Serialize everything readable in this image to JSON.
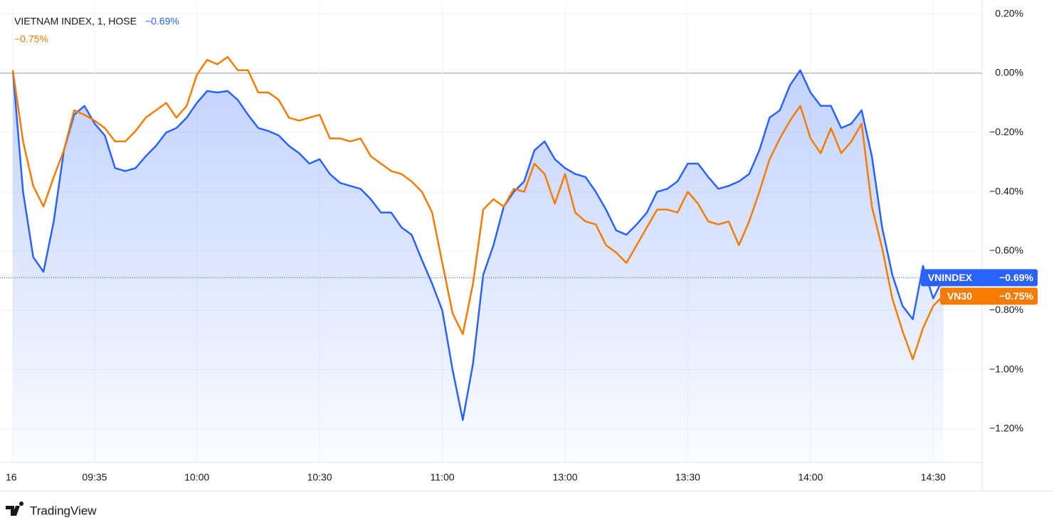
{
  "chart_data": {
    "type": "line",
    "title": "VIETNAM INDEX, 1, HOSE",
    "brand": "TradingView",
    "categories": [
      "16",
      null,
      null,
      null,
      null,
      null,
      null,
      null,
      "09:35",
      null,
      null,
      null,
      null,
      null,
      null,
      null,
      null,
      null,
      "10:00",
      null,
      null,
      null,
      null,
      null,
      null,
      null,
      null,
      null,
      null,
      null,
      "10:30",
      null,
      null,
      null,
      null,
      null,
      null,
      null,
      null,
      null,
      null,
      null,
      "11:00",
      null,
      null,
      null,
      null,
      null,
      null,
      null,
      null,
      null,
      null,
      null,
      "13:00",
      null,
      null,
      null,
      null,
      null,
      null,
      null,
      null,
      null,
      null,
      null,
      "13:30",
      null,
      null,
      null,
      null,
      null,
      null,
      null,
      null,
      null,
      null,
      null,
      "14:00",
      null,
      null,
      null,
      null,
      null,
      null,
      null,
      null,
      null,
      null,
      null,
      "14:30",
      null
    ],
    "series": [
      {
        "name": "VNINDEX",
        "color": "#2962ff",
        "last_label": "−0.69%",
        "area": true,
        "values": [
          0.01,
          -0.4,
          -0.62,
          -0.67,
          -0.5,
          -0.26,
          -0.14,
          -0.11,
          -0.17,
          -0.21,
          -0.32,
          -0.33,
          -0.32,
          -0.28,
          -0.245,
          -0.2,
          -0.185,
          -0.15,
          -0.1,
          -0.06,
          -0.065,
          -0.06,
          -0.09,
          -0.14,
          -0.185,
          -0.195,
          -0.21,
          -0.245,
          -0.27,
          -0.305,
          -0.29,
          -0.34,
          -0.37,
          -0.38,
          -0.39,
          -0.425,
          -0.47,
          -0.47,
          -0.52,
          -0.545,
          -0.63,
          -0.71,
          -0.8,
          -1.0,
          -1.17,
          -0.98,
          -0.68,
          -0.58,
          -0.45,
          -0.4,
          -0.365,
          -0.26,
          -0.23,
          -0.29,
          -0.32,
          -0.34,
          -0.35,
          -0.4,
          -0.46,
          -0.53,
          -0.545,
          -0.51,
          -0.47,
          -0.4,
          -0.39,
          -0.365,
          -0.305,
          -0.305,
          -0.35,
          -0.39,
          -0.38,
          -0.365,
          -0.34,
          -0.26,
          -0.15,
          -0.125,
          -0.04,
          0.01,
          -0.065,
          -0.11,
          -0.11,
          -0.185,
          -0.17,
          -0.125,
          -0.28,
          -0.52,
          -0.68,
          -0.785,
          -0.83,
          -0.65,
          -0.76,
          -0.69
        ]
      },
      {
        "name": "VN30",
        "color": "#f57c00",
        "last_label": "−0.75%",
        "area": false,
        "values": [
          0.01,
          -0.23,
          -0.38,
          -0.45,
          -0.35,
          -0.26,
          -0.125,
          -0.14,
          -0.16,
          -0.185,
          -0.23,
          -0.23,
          -0.195,
          -0.15,
          -0.125,
          -0.1,
          -0.15,
          -0.11,
          -0.005,
          0.045,
          0.03,
          0.055,
          0.01,
          0.01,
          -0.065,
          -0.065,
          -0.09,
          -0.15,
          -0.16,
          -0.15,
          -0.14,
          -0.22,
          -0.22,
          -0.23,
          -0.22,
          -0.28,
          -0.305,
          -0.33,
          -0.34,
          -0.365,
          -0.4,
          -0.47,
          -0.64,
          -0.81,
          -0.88,
          -0.71,
          -0.46,
          -0.425,
          -0.45,
          -0.39,
          -0.4,
          -0.305,
          -0.34,
          -0.44,
          -0.34,
          -0.47,
          -0.5,
          -0.51,
          -0.58,
          -0.605,
          -0.64,
          -0.58,
          -0.52,
          -0.46,
          -0.46,
          -0.47,
          -0.4,
          -0.44,
          -0.5,
          -0.51,
          -0.5,
          -0.58,
          -0.5,
          -0.4,
          -0.29,
          -0.22,
          -0.16,
          -0.11,
          -0.22,
          -0.27,
          -0.185,
          -0.27,
          -0.23,
          -0.17,
          -0.45,
          -0.59,
          -0.76,
          -0.87,
          -0.965,
          -0.86,
          -0.785,
          -0.75
        ]
      }
    ],
    "ylim": [
      -1.313,
      0.235
    ],
    "yticks": [
      {
        "value": 0.2,
        "label": "0.20%"
      },
      {
        "value": 0,
        "label": "0.00%"
      },
      {
        "value": -0.2,
        "label": "−0.20%"
      },
      {
        "value": -0.4,
        "label": "−0.40%"
      },
      {
        "value": -0.6,
        "label": "−0.60%"
      },
      {
        "value": -0.8,
        "label": "−0.80%"
      },
      {
        "value": -1.0,
        "label": "−1.00%"
      },
      {
        "value": -1.2,
        "label": "−1.20%"
      }
    ],
    "grid": true
  }
}
